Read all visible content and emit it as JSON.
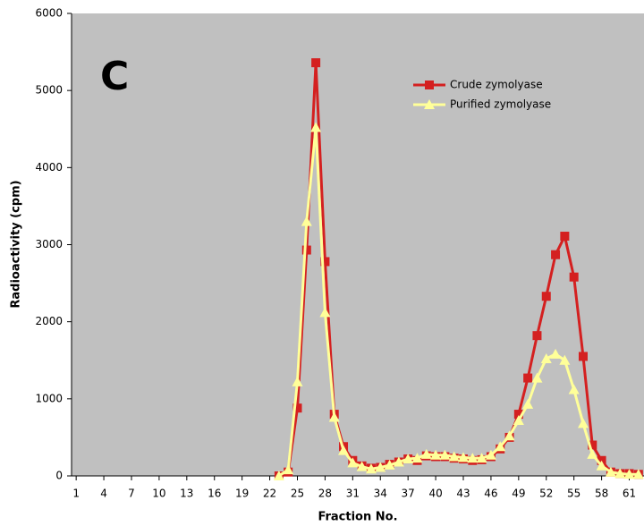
{
  "chart_data": {
    "type": "line",
    "annotation": "C",
    "x_label": "Fraction No.",
    "y_label": "Radioactivity (cpm)",
    "x": [
      23,
      24,
      25,
      26,
      27,
      28,
      29,
      30,
      31,
      32,
      33,
      34,
      35,
      36,
      37,
      38,
      39,
      40,
      41,
      42,
      43,
      44,
      45,
      46,
      47,
      48,
      49,
      50,
      51,
      52,
      53,
      54,
      55,
      56,
      57,
      58,
      59,
      60,
      61,
      62
    ],
    "series": [
      {
        "name": "Crude zymolyase",
        "color": "#d42020",
        "marker": "square",
        "values": [
          0,
          50,
          880,
          2930,
          5360,
          2780,
          800,
          380,
          200,
          130,
          100,
          110,
          150,
          180,
          220,
          200,
          260,
          250,
          250,
          230,
          220,
          200,
          210,
          250,
          350,
          500,
          800,
          1270,
          1820,
          2330,
          2870,
          3110,
          2580,
          1550,
          400,
          200,
          50,
          30,
          30,
          20
        ]
      },
      {
        "name": "Purified zymolyase",
        "color": "#ffff99",
        "marker": "triangle",
        "values": [
          0,
          80,
          1220,
          3300,
          4520,
          2120,
          760,
          330,
          170,
          120,
          90,
          110,
          140,
          180,
          220,
          230,
          280,
          270,
          270,
          250,
          240,
          230,
          230,
          270,
          380,
          520,
          720,
          930,
          1270,
          1520,
          1580,
          1500,
          1120,
          680,
          280,
          130,
          50,
          30,
          20,
          20
        ]
      }
    ],
    "xlim": [
      0.5,
      62.6
    ],
    "xticks": [
      1,
      4,
      7,
      10,
      13,
      16,
      19,
      22,
      25,
      28,
      31,
      34,
      37,
      40,
      43,
      46,
      49,
      52,
      55,
      58,
      61
    ],
    "ylim": [
      0,
      6000
    ],
    "yticks": [
      0,
      1000,
      2000,
      3000,
      4000,
      5000,
      6000
    ],
    "background": "#c0c0c0"
  }
}
